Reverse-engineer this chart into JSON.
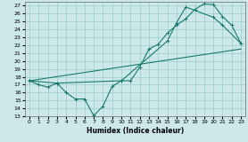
{
  "xlabel": "Humidex (Indice chaleur)",
  "bg_color": "#cce8e8",
  "grid_color": "#99cccc",
  "line_color": "#1a7a6e",
  "xlim": [
    -0.5,
    23.5
  ],
  "ylim": [
    13,
    27.5
  ],
  "xticks": [
    0,
    1,
    2,
    3,
    4,
    5,
    6,
    7,
    8,
    9,
    10,
    11,
    12,
    13,
    14,
    15,
    16,
    17,
    18,
    19,
    20,
    21,
    22,
    23
  ],
  "yticks": [
    13,
    14,
    15,
    16,
    17,
    18,
    19,
    20,
    21,
    22,
    23,
    24,
    25,
    26,
    27
  ],
  "line1_x": [
    0,
    1,
    2,
    3,
    4,
    5,
    6,
    7,
    8,
    9,
    10,
    11,
    12,
    13,
    14,
    15,
    16,
    17,
    18,
    19,
    20,
    21,
    22,
    23
  ],
  "line1_y": [
    17.5,
    17.0,
    16.7,
    17.2,
    16.0,
    15.2,
    15.2,
    13.1,
    14.3,
    16.8,
    17.5,
    17.5,
    19.2,
    21.5,
    22.1,
    23.5,
    24.5,
    25.3,
    26.5,
    27.2,
    27.1,
    25.6,
    24.5,
    22.2
  ],
  "line2_x": [
    0,
    3,
    10,
    15,
    16,
    17,
    20,
    21,
    23
  ],
  "line2_y": [
    17.5,
    17.2,
    17.5,
    22.5,
    24.8,
    26.8,
    25.5,
    24.5,
    22.2
  ],
  "line3_x": [
    0,
    23
  ],
  "line3_y": [
    17.5,
    21.5
  ]
}
